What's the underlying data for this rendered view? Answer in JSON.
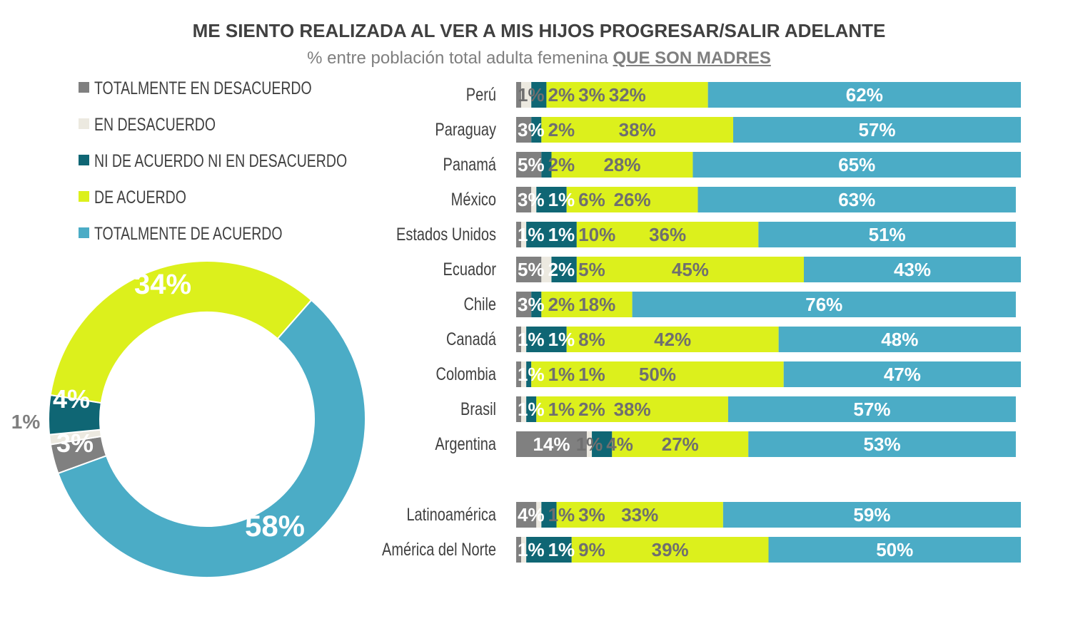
{
  "chart_data": [
    {
      "type": "pie",
      "variant": "donut",
      "categories": [
        "TOTALMENTE EN DESACUERDO",
        "EN DESACUERDO",
        "NI DE ACUERDO NI EN DESACUERDO",
        "DE ACUERDO",
        "TOTALMENTE DE ACUERDO"
      ],
      "values": [
        3,
        1,
        4,
        34,
        58
      ],
      "labels": [
        "3%",
        "1%",
        "4%",
        "34%",
        "58%"
      ]
    },
    {
      "type": "bar",
      "orientation": "horizontal",
      "stacked": true,
      "percent_stacked": true,
      "title": "ME SIENTO REALIZADA AL VER A MIS HIJOS PROGRESAR/SALIR ADELANTE",
      "subtitle_prefix": "% entre población total adulta femenina",
      "subtitle_emphasis": "QUE SON MADRES",
      "legend_position": "top-left",
      "categories": [
        "Perú",
        "Paraguay",
        "Panamá",
        "México",
        "Estados Unidos",
        "Ecuador",
        "Chile",
        "Canadá",
        "Colombia",
        "Brasil",
        "Argentina",
        "Latinoamérica",
        "América del Norte"
      ],
      "series": [
        {
          "name": "TOTALMENTE EN DESACUERDO",
          "color": "#808080",
          "values": [
            1,
            3,
            5,
            3,
            1,
            5,
            3,
            1,
            1,
            1,
            14,
            4,
            1
          ]
        },
        {
          "name": "EN DESACUERDO",
          "color": "#ece9e0",
          "values": [
            2,
            0,
            0,
            1,
            1,
            2,
            0,
            1,
            1,
            1,
            1,
            1,
            1
          ]
        },
        {
          "name": "NI DE ACUERDO NI EN DESACUERDO",
          "color": "#0f6674",
          "values": [
            3,
            2,
            2,
            6,
            10,
            5,
            2,
            8,
            1,
            2,
            4,
            3,
            9
          ]
        },
        {
          "name": "DE ACUERDO",
          "color": "#dcf01c",
          "values": [
            32,
            38,
            28,
            26,
            36,
            45,
            18,
            42,
            50,
            38,
            27,
            33,
            39
          ]
        },
        {
          "name": "TOTALMENTE DE ACUERDO",
          "color": "#4bacc6",
          "values": [
            62,
            57,
            65,
            63,
            51,
            43,
            76,
            48,
            47,
            57,
            53,
            59,
            50
          ]
        }
      ]
    }
  ]
}
